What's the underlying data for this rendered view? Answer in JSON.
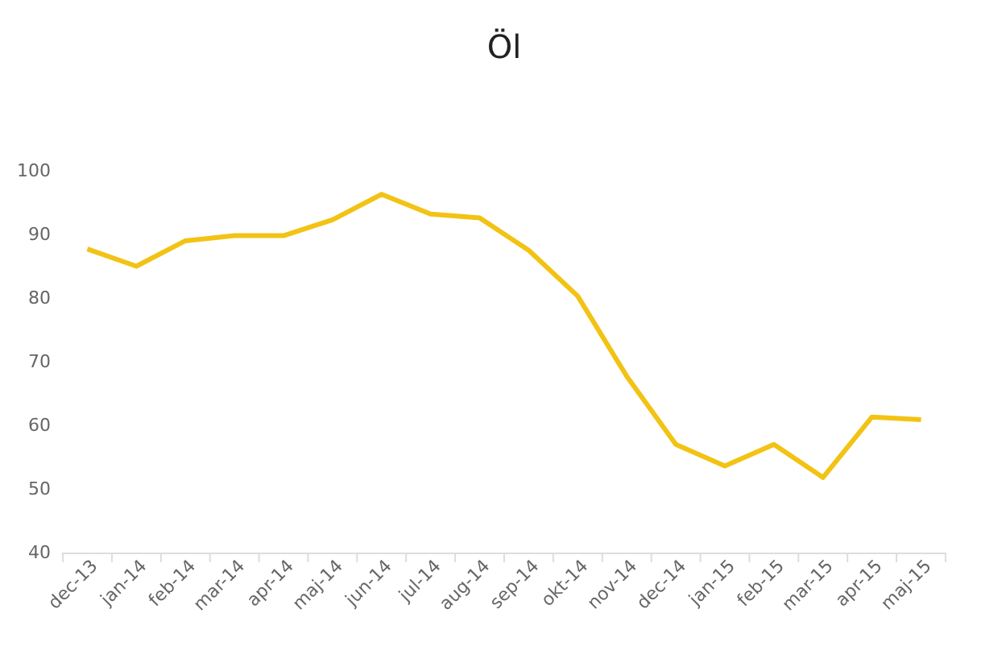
{
  "chart_data": {
    "type": "line",
    "title": "Öl",
    "categories": [
      "dec-13",
      "jan-14",
      "feb-14",
      "mar-14",
      "apr-14",
      "maj-14",
      "jun-14",
      "jul-14",
      "aug-14",
      "sep-14",
      "okt-14",
      "nov-14",
      "dec-14",
      "jan-15",
      "feb-15",
      "mar-15",
      "apr-15",
      "maj-15"
    ],
    "series": [
      {
        "color": "#f2c314",
        "values": [
          87.7,
          85,
          89,
          89.8,
          89.8,
          92.3,
          96.3,
          93.2,
          92.6,
          87.5,
          80.3,
          67.7,
          57,
          53.6,
          57,
          51.8,
          61.3,
          60.9
        ]
      }
    ],
    "ylim": [
      40,
      100
    ],
    "yticks": [
      40,
      50,
      60,
      70,
      80,
      90,
      100
    ],
    "grid": false,
    "marker": "none",
    "line_style": "solid"
  }
}
